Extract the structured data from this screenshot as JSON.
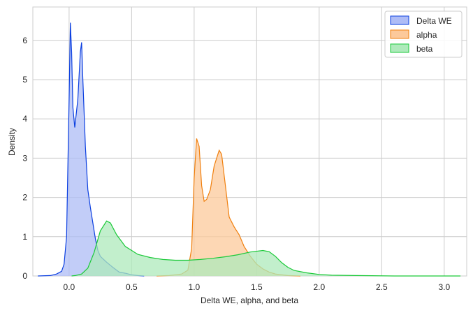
{
  "chart_data": {
    "type": "area",
    "title": "",
    "xlabel": "Delta WE, alpha, and beta",
    "ylabel": "Density",
    "xlim": [
      -0.29,
      3.18
    ],
    "ylim": [
      0,
      6.85
    ],
    "xticks": [
      0.0,
      0.5,
      1.0,
      1.5,
      2.0,
      2.5,
      3.0
    ],
    "xtick_labels": [
      "0.0",
      "0.5",
      "1.0",
      "1.5",
      "2.0",
      "2.5",
      "3.0"
    ],
    "yticks": [
      0,
      1,
      2,
      3,
      4,
      5,
      6
    ],
    "ytick_labels": [
      "0",
      "1",
      "2",
      "3",
      "4",
      "5",
      "6"
    ],
    "grid": true,
    "legend_position": "top-right",
    "series": [
      {
        "name": "Delta WE",
        "color": "#0b3fe0",
        "fill": "#aebcf6",
        "points": [
          [
            -0.25,
            0
          ],
          [
            -0.15,
            0.01
          ],
          [
            -0.1,
            0.05
          ],
          [
            -0.06,
            0.12
          ],
          [
            -0.04,
            0.3
          ],
          [
            -0.02,
            1.0
          ],
          [
            0.0,
            4.5
          ],
          [
            0.01,
            6.45
          ],
          [
            0.02,
            5.7
          ],
          [
            0.03,
            4.3
          ],
          [
            0.045,
            3.78
          ],
          [
            0.07,
            4.5
          ],
          [
            0.09,
            5.7
          ],
          [
            0.1,
            5.95
          ],
          [
            0.11,
            5.0
          ],
          [
            0.13,
            3.3
          ],
          [
            0.15,
            2.2
          ],
          [
            0.17,
            1.75
          ],
          [
            0.19,
            1.35
          ],
          [
            0.21,
            0.95
          ],
          [
            0.23,
            0.65
          ],
          [
            0.25,
            0.5
          ],
          [
            0.3,
            0.35
          ],
          [
            0.35,
            0.22
          ],
          [
            0.4,
            0.1
          ],
          [
            0.45,
            0.07
          ],
          [
            0.5,
            0.03
          ],
          [
            0.55,
            0.01
          ],
          [
            0.6,
            0.0
          ]
        ]
      },
      {
        "name": "alpha",
        "color": "#f07f0d",
        "fill": "#fcc99b",
        "points": [
          [
            0.7,
            0
          ],
          [
            0.8,
            0.01
          ],
          [
            0.9,
            0.05
          ],
          [
            0.95,
            0.15
          ],
          [
            0.98,
            0.7
          ],
          [
            1.0,
            2.5
          ],
          [
            1.02,
            3.5
          ],
          [
            1.04,
            3.3
          ],
          [
            1.06,
            2.3
          ],
          [
            1.08,
            1.9
          ],
          [
            1.1,
            1.95
          ],
          [
            1.13,
            2.2
          ],
          [
            1.16,
            2.8
          ],
          [
            1.2,
            3.2
          ],
          [
            1.22,
            3.1
          ],
          [
            1.25,
            2.3
          ],
          [
            1.28,
            1.5
          ],
          [
            1.32,
            1.25
          ],
          [
            1.36,
            1.05
          ],
          [
            1.4,
            0.75
          ],
          [
            1.45,
            0.5
          ],
          [
            1.5,
            0.3
          ],
          [
            1.55,
            0.18
          ],
          [
            1.6,
            0.1
          ],
          [
            1.65,
            0.05
          ],
          [
            1.75,
            0.01
          ],
          [
            1.85,
            0.0
          ]
        ]
      },
      {
        "name": "beta",
        "color": "#1ac938",
        "fill": "#aeeabb",
        "points": [
          [
            0.02,
            0
          ],
          [
            0.05,
            0.01
          ],
          [
            0.1,
            0.05
          ],
          [
            0.15,
            0.2
          ],
          [
            0.2,
            0.6
          ],
          [
            0.25,
            1.15
          ],
          [
            0.3,
            1.4
          ],
          [
            0.33,
            1.35
          ],
          [
            0.38,
            1.05
          ],
          [
            0.45,
            0.75
          ],
          [
            0.55,
            0.55
          ],
          [
            0.65,
            0.47
          ],
          [
            0.75,
            0.42
          ],
          [
            0.85,
            0.4
          ],
          [
            0.95,
            0.4
          ],
          [
            1.05,
            0.42
          ],
          [
            1.15,
            0.45
          ],
          [
            1.25,
            0.49
          ],
          [
            1.35,
            0.54
          ],
          [
            1.45,
            0.61
          ],
          [
            1.55,
            0.65
          ],
          [
            1.6,
            0.62
          ],
          [
            1.65,
            0.5
          ],
          [
            1.7,
            0.34
          ],
          [
            1.75,
            0.22
          ],
          [
            1.8,
            0.14
          ],
          [
            1.9,
            0.08
          ],
          [
            2.0,
            0.04
          ],
          [
            2.1,
            0.02
          ],
          [
            2.3,
            0.01
          ],
          [
            2.6,
            0.0
          ],
          [
            3.0,
            0.0
          ],
          [
            3.13,
            0.0
          ]
        ]
      }
    ]
  }
}
